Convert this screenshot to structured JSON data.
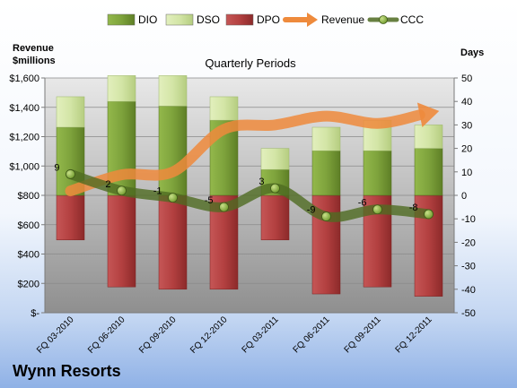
{
  "company_name": "Wynn Resorts",
  "chart_data": {
    "type": "bar",
    "title": "Quarterly Periods",
    "y_left_label_line1": "Revenue",
    "y_left_label_line2": "$millions",
    "y_right_label": "Days",
    "categories": [
      "FQ 03-2010",
      "FQ 06-2010",
      "FQ 09-2010",
      "FQ 12-2010",
      "FQ 03-2011",
      "FQ 06-2011",
      "FQ 09-2011",
      "FQ 12-2011"
    ],
    "ylim_left": [
      0,
      1600
    ],
    "ylim_right": [
      -50,
      50
    ],
    "left_ticks": [
      "$-",
      "$200",
      "$400",
      "$600",
      "$800",
      "$1,000",
      "$1,200",
      "$1,400",
      "$1,600"
    ],
    "right_ticks": [
      "-50",
      "-40",
      "-30",
      "-20",
      "-10",
      "0",
      "10",
      "20",
      "30",
      "40",
      "50"
    ],
    "legend_position": "top",
    "stacked_bars": true,
    "series": [
      {
        "name": "DIO",
        "axis": "right",
        "kind": "bar",
        "color": "#7ea33c",
        "values": [
          29,
          40,
          38,
          32,
          11,
          19,
          19,
          20
        ]
      },
      {
        "name": "DSO",
        "axis": "right",
        "kind": "bar",
        "color": "#d3e5a6",
        "values": [
          13,
          11,
          13,
          10,
          9,
          10,
          13,
          10
        ]
      },
      {
        "name": "DPO",
        "axis": "right",
        "kind": "bar",
        "color": "#b34040",
        "values": [
          -19,
          -39,
          -40,
          -40,
          -19,
          -42,
          -39,
          -43
        ]
      },
      {
        "name": "Revenue",
        "axis": "left",
        "kind": "line",
        "color": "#ee8a3c",
        "values": [
          830,
          940,
          960,
          1250,
          1280,
          1340,
          1290,
          1360
        ]
      },
      {
        "name": "CCC",
        "axis": "right",
        "kind": "line",
        "color": "#5e7b2e",
        "values": [
          9,
          2,
          -1,
          -5,
          3,
          -9,
          -6,
          -8
        ]
      }
    ],
    "ccc_labels": [
      "9",
      "2",
      "-1",
      "-5",
      "3",
      "-9",
      "-6",
      "-8"
    ]
  }
}
